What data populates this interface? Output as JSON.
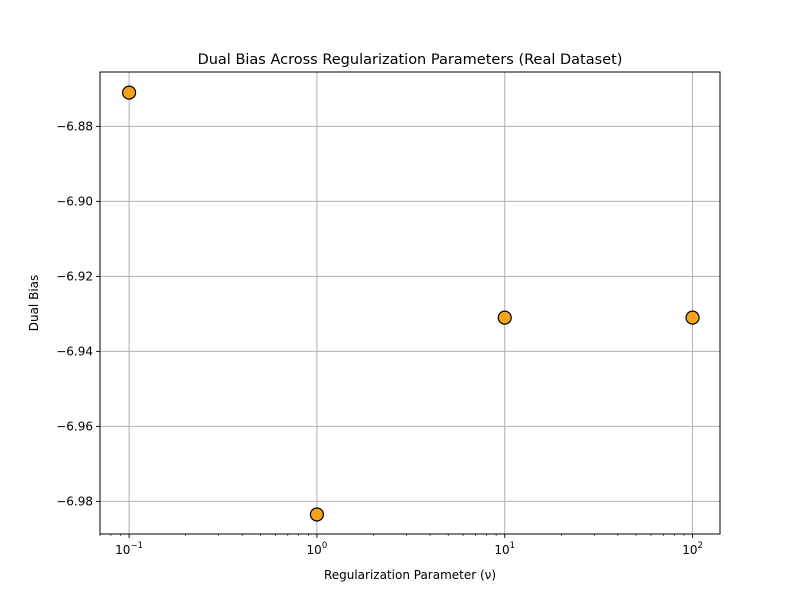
{
  "chart_data": {
    "type": "scatter",
    "title": "Dual Bias Across Regularization Parameters (Real Dataset)",
    "xlabel": "Regularization Parameter (ν)",
    "ylabel": "Dual Bias",
    "x_scale": "log",
    "xlim": [
      0.07,
      140
    ],
    "ylim": [
      -6.9887,
      -6.8655
    ],
    "x_ticks": [
      {
        "value": 0.1,
        "base": "10",
        "exp": "−1"
      },
      {
        "value": 1,
        "base": "10",
        "exp": "0"
      },
      {
        "value": 10,
        "base": "10",
        "exp": "1"
      },
      {
        "value": 100,
        "base": "10",
        "exp": "2"
      }
    ],
    "y_ticks": [
      {
        "value": -6.88,
        "label": "−6.88"
      },
      {
        "value": -6.9,
        "label": "−6.90"
      },
      {
        "value": -6.92,
        "label": "−6.92"
      },
      {
        "value": -6.94,
        "label": "−6.94"
      },
      {
        "value": -6.96,
        "label": "−6.96"
      },
      {
        "value": -6.98,
        "label": "−6.98"
      }
    ],
    "grid": true,
    "points": [
      {
        "x": 0.1,
        "y": -6.871
      },
      {
        "x": 1,
        "y": -6.9835
      },
      {
        "x": 10,
        "y": -6.931
      },
      {
        "x": 100,
        "y": -6.931
      }
    ],
    "marker_color": "#f5a31a",
    "marker_edge_color": "#000000"
  }
}
